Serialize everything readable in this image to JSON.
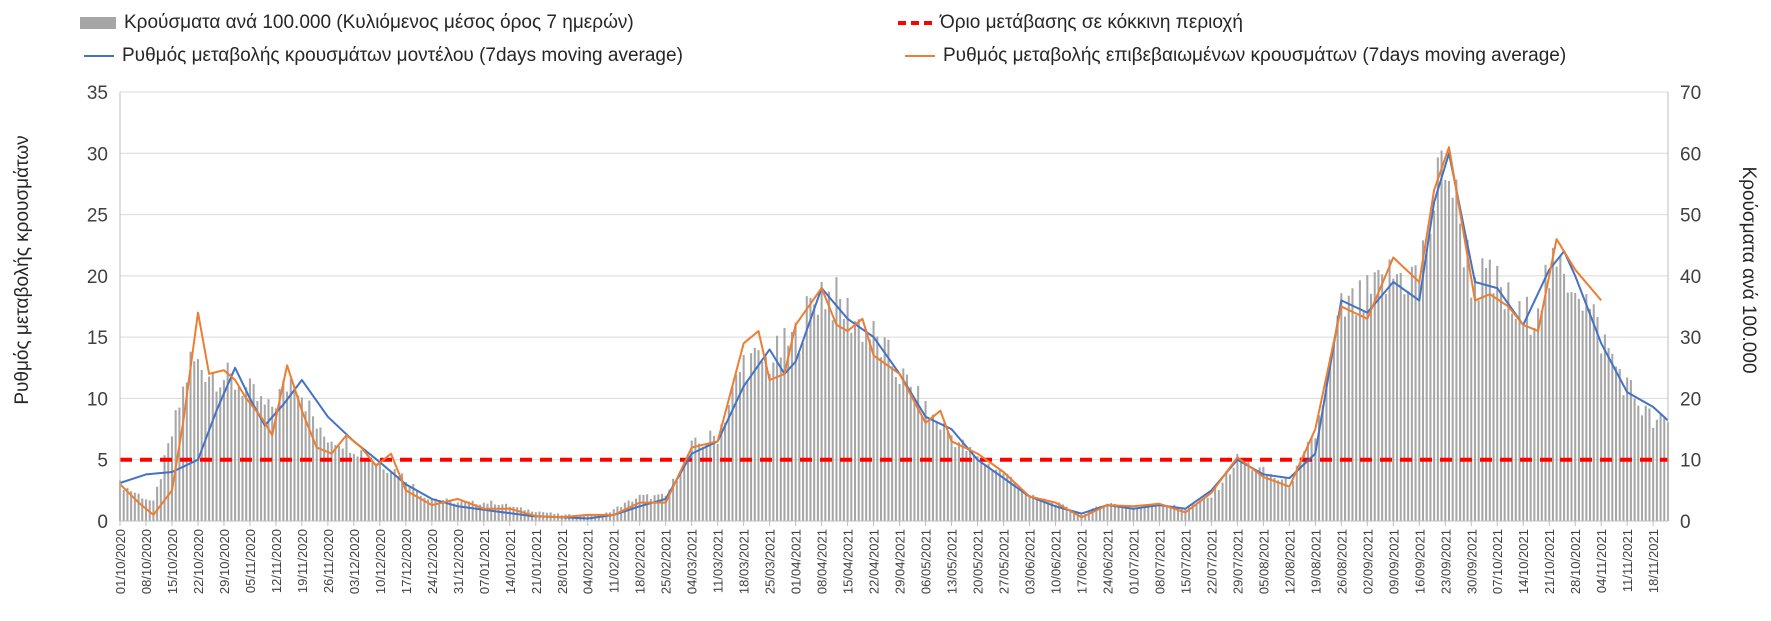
{
  "legend": {
    "bars": "Κρούσματα ανά 100.000 (Κυλιόμενος μέσος όρος 7 ημερών)",
    "threshold": "Όριο μετάβασης σε κόκκινη περιοχή",
    "model": "Ρυθμός μεταβολής κρουσμάτων μοντέλου (7days moving average)",
    "confirmed": "Ρυθμός μεταβολής επιβεβαιωμένων κρουσμάτων (7days moving average)"
  },
  "chart_data": {
    "type": "bar",
    "colors": {
      "bars": "#a6a6a6",
      "threshold": "#ff0000",
      "model": "#4472c4",
      "confirmed": "#ed7d31",
      "grid": "#d9d9d9"
    },
    "grid": true,
    "legend_position": "top",
    "ylabel_left": "Ρυθμός μεταβολής κρουσμάτων",
    "ylabel_right": "Κρούσματα ανά 100.000",
    "ylim_left": [
      0,
      35
    ],
    "ylim_right": [
      0,
      70
    ],
    "yticks_left": [
      "0",
      "5",
      "10",
      "15",
      "20",
      "25",
      "30",
      "35"
    ],
    "yticks_right": [
      "0",
      "10",
      "20",
      "30",
      "40",
      "50",
      "60",
      "70"
    ],
    "x_start": "2020-10-01",
    "x_end": "2021-11-22",
    "xtick_labels": [
      "01/10/2020",
      "08/10/2020",
      "15/10/2020",
      "22/10/2020",
      "29/10/2020",
      "05/11/2020",
      "12/11/2020",
      "19/11/2020",
      "26/11/2020",
      "03/12/2020",
      "10/12/2020",
      "17/12/2020",
      "24/12/2020",
      "31/12/2020",
      "07/01/2021",
      "14/01/2021",
      "21/01/2021",
      "28/01/2021",
      "04/02/2021",
      "11/02/2021",
      "18/02/2021",
      "25/02/2021",
      "04/03/2021",
      "11/03/2021",
      "18/03/2021",
      "25/03/2021",
      "01/04/2021",
      "08/04/2021",
      "15/04/2021",
      "22/04/2021",
      "29/04/2021",
      "06/05/2021",
      "13/05/2021",
      "20/05/2021",
      "27/05/2021",
      "03/06/2021",
      "10/06/2021",
      "17/06/2021",
      "24/06/2021",
      "01/07/2021",
      "08/07/2021",
      "15/07/2021",
      "22/07/2021",
      "29/07/2021",
      "05/08/2021",
      "12/08/2021",
      "19/08/2021",
      "26/08/2021",
      "02/09/2021",
      "09/09/2021",
      "16/09/2021",
      "23/09/2021",
      "30/09/2021",
      "07/10/2021",
      "14/10/2021",
      "21/10/2021",
      "28/10/2021",
      "04/11/2021",
      "11/11/2021",
      "18/11/2021"
    ],
    "series": [
      {
        "name": "Κρούσματα ανά 100.000 (Κυλιόμενος μέσος όρος 7 ημερών)",
        "type": "bar",
        "axis": "right",
        "points": [
          [
            "2020-10-01",
            6
          ],
          [
            "2020-10-10",
            3
          ],
          [
            "2020-10-15",
            14
          ],
          [
            "2020-10-20",
            26
          ],
          [
            "2020-10-27",
            24
          ],
          [
            "2020-11-03",
            22
          ],
          [
            "2020-11-10",
            18
          ],
          [
            "2020-11-17",
            24
          ],
          [
            "2020-11-24",
            14
          ],
          [
            "2020-12-01",
            13
          ],
          [
            "2020-12-08",
            10
          ],
          [
            "2020-12-15",
            8
          ],
          [
            "2020-12-22",
            4
          ],
          [
            "2020-12-31",
            3
          ],
          [
            "2021-01-10",
            3
          ],
          [
            "2021-01-17",
            2
          ],
          [
            "2021-01-28",
            1
          ],
          [
            "2021-02-08",
            1
          ],
          [
            "2021-02-18",
            4
          ],
          [
            "2021-02-25",
            4
          ],
          [
            "2021-03-04",
            12
          ],
          [
            "2021-03-11",
            14
          ],
          [
            "2021-03-18",
            26
          ],
          [
            "2021-03-25",
            26
          ],
          [
            "2021-04-01",
            30
          ],
          [
            "2021-04-08",
            38
          ],
          [
            "2021-04-15",
            34
          ],
          [
            "2021-04-22",
            30
          ],
          [
            "2021-04-29",
            24
          ],
          [
            "2021-05-06",
            18
          ],
          [
            "2021-05-13",
            14
          ],
          [
            "2021-05-20",
            10
          ],
          [
            "2021-05-27",
            8
          ],
          [
            "2021-06-03",
            4
          ],
          [
            "2021-06-10",
            3
          ],
          [
            "2021-06-17",
            1
          ],
          [
            "2021-06-24",
            3
          ],
          [
            "2021-07-01",
            2
          ],
          [
            "2021-07-08",
            3
          ],
          [
            "2021-07-15",
            2
          ],
          [
            "2021-07-22",
            4
          ],
          [
            "2021-07-29",
            10
          ],
          [
            "2021-08-05",
            8
          ],
          [
            "2021-08-12",
            6
          ],
          [
            "2021-08-19",
            14
          ],
          [
            "2021-08-26",
            34
          ],
          [
            "2021-09-02",
            36
          ],
          [
            "2021-09-09",
            40
          ],
          [
            "2021-09-16",
            40
          ],
          [
            "2021-09-23",
            60
          ],
          [
            "2021-09-30",
            40
          ],
          [
            "2021-10-07",
            38
          ],
          [
            "2021-10-14",
            32
          ],
          [
            "2021-10-21",
            40
          ],
          [
            "2021-10-28",
            40
          ],
          [
            "2021-11-04",
            30
          ],
          [
            "2021-11-11",
            22
          ],
          [
            "2021-11-18",
            16
          ]
        ]
      },
      {
        "name": "Όριο μετάβασης σε κόκκινη περιοχή",
        "type": "line",
        "axis": "left",
        "value": 5
      },
      {
        "name": "Ρυθμός μεταβολής κρουσμάτων μοντέλου (7days moving average)",
        "type": "line",
        "axis": "left",
        "points": [
          [
            "2020-10-01",
            3.1
          ],
          [
            "2020-10-08",
            3.8
          ],
          [
            "2020-10-15",
            4.0
          ],
          [
            "2020-10-22",
            5.0
          ],
          [
            "2020-10-27",
            9.0
          ],
          [
            "2020-11-01",
            12.5
          ],
          [
            "2020-11-05",
            10.0
          ],
          [
            "2020-11-09",
            7.8
          ],
          [
            "2020-11-14",
            9.5
          ],
          [
            "2020-11-19",
            11.5
          ],
          [
            "2020-11-26",
            8.5
          ],
          [
            "2020-12-03",
            6.5
          ],
          [
            "2020-12-10",
            4.8
          ],
          [
            "2020-12-17",
            3.0
          ],
          [
            "2020-12-24",
            1.8
          ],
          [
            "2020-12-31",
            1.2
          ],
          [
            "2021-01-10",
            0.8
          ],
          [
            "2021-01-20",
            0.4
          ],
          [
            "2021-01-28",
            0.3
          ],
          [
            "2021-02-04",
            0.2
          ],
          [
            "2021-02-11",
            0.5
          ],
          [
            "2021-02-18",
            1.2
          ],
          [
            "2021-02-25",
            1.8
          ],
          [
            "2021-03-04",
            5.5
          ],
          [
            "2021-03-11",
            6.5
          ],
          [
            "2021-03-18",
            11.0
          ],
          [
            "2021-03-25",
            14.0
          ],
          [
            "2021-03-29",
            12.0
          ],
          [
            "2021-04-01",
            13.0
          ],
          [
            "2021-04-08",
            19.0
          ],
          [
            "2021-04-15",
            16.5
          ],
          [
            "2021-04-22",
            15.0
          ],
          [
            "2021-04-29",
            12.0
          ],
          [
            "2021-05-06",
            8.5
          ],
          [
            "2021-05-13",
            7.5
          ],
          [
            "2021-05-20",
            5.0
          ],
          [
            "2021-05-27",
            3.5
          ],
          [
            "2021-06-03",
            2.0
          ],
          [
            "2021-06-10",
            1.2
          ],
          [
            "2021-06-17",
            0.6
          ],
          [
            "2021-06-24",
            1.3
          ],
          [
            "2021-07-01",
            1.0
          ],
          [
            "2021-07-08",
            1.3
          ],
          [
            "2021-07-15",
            1.0
          ],
          [
            "2021-07-22",
            2.5
          ],
          [
            "2021-07-29",
            5.0
          ],
          [
            "2021-08-05",
            3.8
          ],
          [
            "2021-08-12",
            3.5
          ],
          [
            "2021-08-19",
            5.5
          ],
          [
            "2021-08-26",
            18.0
          ],
          [
            "2021-09-02",
            17.0
          ],
          [
            "2021-09-09",
            19.5
          ],
          [
            "2021-09-16",
            18.0
          ],
          [
            "2021-09-20",
            26.0
          ],
          [
            "2021-09-24",
            30.0
          ],
          [
            "2021-10-01",
            19.5
          ],
          [
            "2021-10-07",
            19.0
          ],
          [
            "2021-10-14",
            16.0
          ],
          [
            "2021-10-21",
            20.5
          ],
          [
            "2021-10-25",
            22.0
          ],
          [
            "2021-10-28",
            20.0
          ],
          [
            "2021-11-04",
            14.5
          ],
          [
            "2021-11-11",
            10.5
          ],
          [
            "2021-11-18",
            9.3
          ],
          [
            "2021-11-22",
            8.2
          ]
        ]
      },
      {
        "name": "Ρυθμός μεταβολής επιβεβαιωμένων κρουσμάτων (7days moving average)",
        "type": "line",
        "axis": "left",
        "points": [
          [
            "2020-10-01",
            3.0
          ],
          [
            "2020-10-06",
            1.5
          ],
          [
            "2020-10-10",
            0.5
          ],
          [
            "2020-10-15",
            2.5
          ],
          [
            "2020-10-18",
            8.0
          ],
          [
            "2020-10-22",
            17.0
          ],
          [
            "2020-10-25",
            12.0
          ],
          [
            "2020-10-29",
            12.3
          ],
          [
            "2020-11-01",
            11.5
          ],
          [
            "2020-11-04",
            10.0
          ],
          [
            "2020-11-08",
            8.5
          ],
          [
            "2020-11-11",
            7.0
          ],
          [
            "2020-11-15",
            12.7
          ],
          [
            "2020-11-19",
            9.0
          ],
          [
            "2020-11-23",
            6.0
          ],
          [
            "2020-11-27",
            5.5
          ],
          [
            "2020-12-01",
            7.0
          ],
          [
            "2020-12-05",
            6.0
          ],
          [
            "2020-12-09",
            4.5
          ],
          [
            "2020-12-13",
            5.5
          ],
          [
            "2020-12-17",
            2.5
          ],
          [
            "2020-12-24",
            1.3
          ],
          [
            "2020-12-31",
            1.8
          ],
          [
            "2021-01-07",
            1.0
          ],
          [
            "2021-01-14",
            1.0
          ],
          [
            "2021-01-21",
            0.4
          ],
          [
            "2021-01-28",
            0.3
          ],
          [
            "2021-02-04",
            0.5
          ],
          [
            "2021-02-11",
            0.5
          ],
          [
            "2021-02-18",
            1.5
          ],
          [
            "2021-02-25",
            1.5
          ],
          [
            "2021-03-04",
            6.0
          ],
          [
            "2021-03-11",
            6.5
          ],
          [
            "2021-03-18",
            14.5
          ],
          [
            "2021-03-22",
            15.5
          ],
          [
            "2021-03-25",
            11.5
          ],
          [
            "2021-03-29",
            12.0
          ],
          [
            "2021-04-01",
            16.0
          ],
          [
            "2021-04-08",
            19.0
          ],
          [
            "2021-04-12",
            16.0
          ],
          [
            "2021-04-15",
            15.5
          ],
          [
            "2021-04-19",
            16.5
          ],
          [
            "2021-04-22",
            13.5
          ],
          [
            "2021-04-29",
            12.0
          ],
          [
            "2021-05-06",
            8.0
          ],
          [
            "2021-05-10",
            9.0
          ],
          [
            "2021-05-13",
            6.5
          ],
          [
            "2021-05-20",
            5.5
          ],
          [
            "2021-05-27",
            4.0
          ],
          [
            "2021-06-03",
            2.0
          ],
          [
            "2021-06-10",
            1.5
          ],
          [
            "2021-06-17",
            0.3
          ],
          [
            "2021-06-24",
            1.3
          ],
          [
            "2021-07-01",
            1.2
          ],
          [
            "2021-07-08",
            1.4
          ],
          [
            "2021-07-15",
            0.7
          ],
          [
            "2021-07-22",
            2.3
          ],
          [
            "2021-07-29",
            5.2
          ],
          [
            "2021-08-05",
            3.6
          ],
          [
            "2021-08-12",
            2.8
          ],
          [
            "2021-08-19",
            7.5
          ],
          [
            "2021-08-26",
            17.5
          ],
          [
            "2021-09-02",
            16.5
          ],
          [
            "2021-09-09",
            21.5
          ],
          [
            "2021-09-16",
            19.5
          ],
          [
            "2021-09-20",
            27.0
          ],
          [
            "2021-09-24",
            30.5
          ],
          [
            "2021-10-01",
            18.0
          ],
          [
            "2021-10-05",
            18.5
          ],
          [
            "2021-10-10",
            17.5
          ],
          [
            "2021-10-14",
            16.0
          ],
          [
            "2021-10-18",
            15.5
          ],
          [
            "2021-10-23",
            23.0
          ],
          [
            "2021-10-28",
            20.5
          ],
          [
            "2021-11-04",
            18.0
          ]
        ]
      }
    ]
  }
}
